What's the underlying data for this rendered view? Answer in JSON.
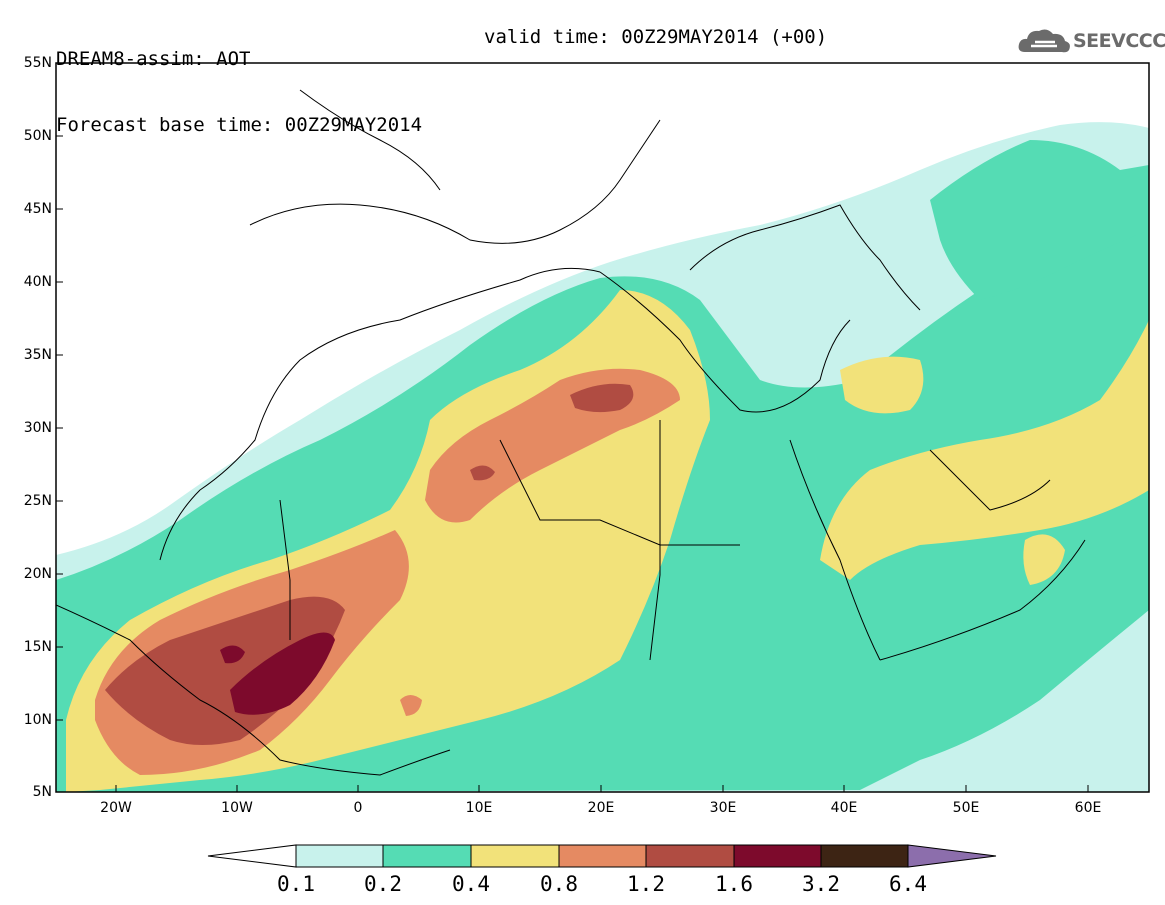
{
  "header": {
    "model_line": "DREAM8-assim: AOT",
    "base_time": "Forecast base time: 00Z29MAY2014",
    "valid_time": "valid time: 00Z29MAY2014 (+00)",
    "logo_text": "SEEVCCC"
  },
  "map": {
    "lat_labels": [
      "55N",
      "50N",
      "45N",
      "40N",
      "35N",
      "30N",
      "25N",
      "20N",
      "15N",
      "10N",
      "5N"
    ],
    "lon_labels": [
      "20W",
      "10W",
      "0",
      "10E",
      "20E",
      "30E",
      "40E",
      "50E",
      "60E"
    ]
  },
  "colorbar": {
    "levels": [
      "0.1",
      "0.2",
      "0.4",
      "0.8",
      "1.2",
      "1.6",
      "3.2",
      "6.4"
    ],
    "colors": [
      "#ffffff",
      "#c8f2ec",
      "#55dcb4",
      "#f2e27a",
      "#e58a62",
      "#b04c42",
      "#7d0a2c",
      "#3d2414",
      "#8c6eac"
    ]
  }
}
